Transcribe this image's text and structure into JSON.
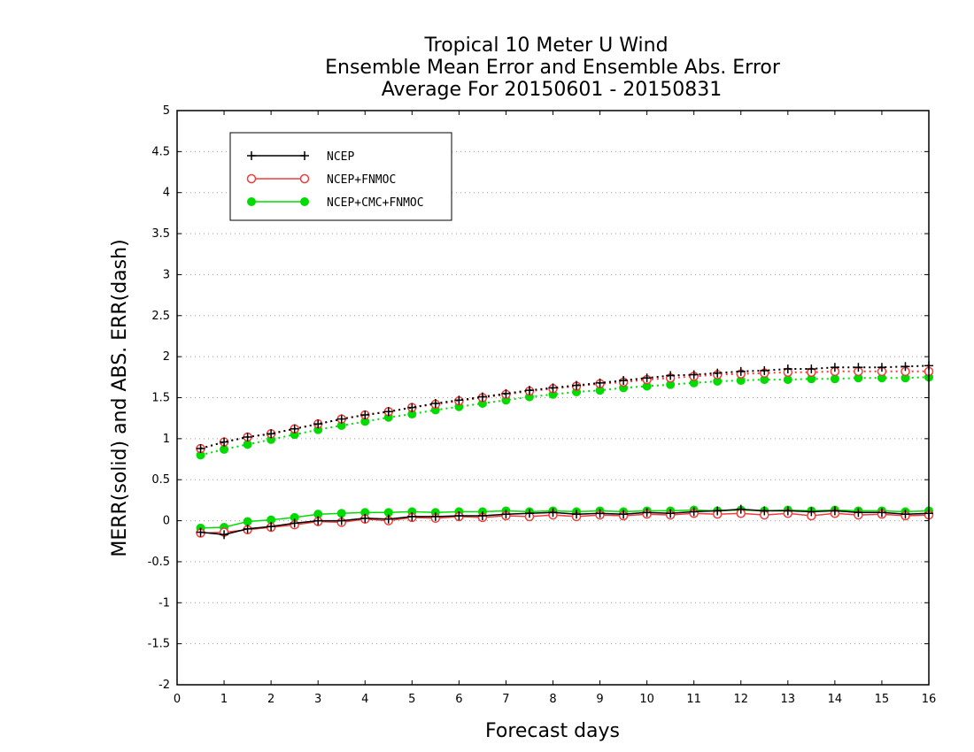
{
  "chart_data": {
    "type": "line",
    "title_lines": [
      "Tropical 10 Meter U Wind",
      "Ensemble Mean Error and Ensemble Abs. Error",
      "Average For 20150601 - 20150831"
    ],
    "xlabel": "Forecast days",
    "ylabel": "MERR(solid) and ABS. ERR(dash)",
    "xlim": [
      0,
      16
    ],
    "ylim": [
      -2,
      5
    ],
    "x_ticks": [
      0,
      1,
      2,
      3,
      4,
      5,
      6,
      7,
      8,
      9,
      10,
      11,
      12,
      13,
      14,
      15,
      16
    ],
    "y_ticks": [
      -2,
      -1.5,
      -1,
      -0.5,
      0,
      0.5,
      1,
      1.5,
      2,
      2.5,
      3,
      3.5,
      4,
      4.5,
      5
    ],
    "y_tick_labels": [
      "-2",
      "-1.5",
      "-1",
      "-0.5",
      "0",
      "0.5",
      "1",
      "1.5",
      "2",
      "2.5",
      "3",
      "3.5",
      "4",
      "4.5",
      "5"
    ],
    "grid": "horizontal dotted",
    "legend_position": "top-left",
    "x": [
      0.5,
      1,
      1.5,
      2,
      2.5,
      3,
      3.5,
      4,
      4.5,
      5,
      5.5,
      6,
      6.5,
      7,
      7.5,
      8,
      8.5,
      9,
      9.5,
      10,
      10.5,
      11,
      11.5,
      12,
      12.5,
      13,
      13.5,
      14,
      14.5,
      15,
      15.5,
      16
    ],
    "series": [
      {
        "name": "NCEP",
        "color": "#000000",
        "marker": "plus",
        "merr": [
          -0.14,
          -0.17,
          -0.1,
          -0.07,
          -0.03,
          0.0,
          0.0,
          0.03,
          0.02,
          0.05,
          0.05,
          0.06,
          0.06,
          0.08,
          0.09,
          0.1,
          0.08,
          0.09,
          0.08,
          0.1,
          0.09,
          0.11,
          0.12,
          0.14,
          0.12,
          0.12,
          0.11,
          0.12,
          0.1,
          0.1,
          0.08,
          0.09
        ],
        "abs_err": [
          0.88,
          0.96,
          1.02,
          1.06,
          1.12,
          1.18,
          1.24,
          1.29,
          1.33,
          1.38,
          1.43,
          1.47,
          1.51,
          1.55,
          1.59,
          1.62,
          1.65,
          1.68,
          1.71,
          1.74,
          1.77,
          1.78,
          1.8,
          1.82,
          1.83,
          1.85,
          1.85,
          1.87,
          1.87,
          1.87,
          1.88,
          1.89
        ]
      },
      {
        "name": "NCEP+FNMOC",
        "color": "#f03c3c",
        "marker": "open-circle",
        "merr": [
          -0.15,
          -0.14,
          -0.11,
          -0.08,
          -0.05,
          -0.01,
          -0.02,
          0.02,
          0.0,
          0.04,
          0.03,
          0.05,
          0.04,
          0.06,
          0.05,
          0.07,
          0.05,
          0.07,
          0.06,
          0.08,
          0.07,
          0.09,
          0.08,
          0.09,
          0.07,
          0.09,
          0.06,
          0.09,
          0.07,
          0.08,
          0.06,
          0.07
        ],
        "abs_err": [
          0.88,
          0.96,
          1.02,
          1.06,
          1.12,
          1.18,
          1.24,
          1.29,
          1.33,
          1.38,
          1.42,
          1.46,
          1.5,
          1.54,
          1.58,
          1.61,
          1.64,
          1.67,
          1.69,
          1.72,
          1.74,
          1.76,
          1.78,
          1.79,
          1.8,
          1.81,
          1.81,
          1.82,
          1.82,
          1.82,
          1.82,
          1.82
        ]
      },
      {
        "name": "NCEP+CMC+FNMOC",
        "color": "#00dc00",
        "marker": "filled-circle",
        "merr": [
          -0.09,
          -0.08,
          -0.01,
          0.01,
          0.04,
          0.08,
          0.09,
          0.1,
          0.1,
          0.11,
          0.1,
          0.11,
          0.11,
          0.12,
          0.11,
          0.12,
          0.11,
          0.12,
          0.11,
          0.12,
          0.12,
          0.13,
          0.12,
          0.13,
          0.12,
          0.13,
          0.12,
          0.13,
          0.12,
          0.12,
          0.11,
          0.12
        ],
        "abs_err": [
          0.8,
          0.87,
          0.93,
          0.99,
          1.05,
          1.11,
          1.16,
          1.21,
          1.26,
          1.3,
          1.35,
          1.39,
          1.43,
          1.47,
          1.51,
          1.54,
          1.57,
          1.59,
          1.62,
          1.64,
          1.66,
          1.68,
          1.7,
          1.71,
          1.72,
          1.72,
          1.73,
          1.73,
          1.74,
          1.74,
          1.74,
          1.75
        ]
      }
    ]
  }
}
